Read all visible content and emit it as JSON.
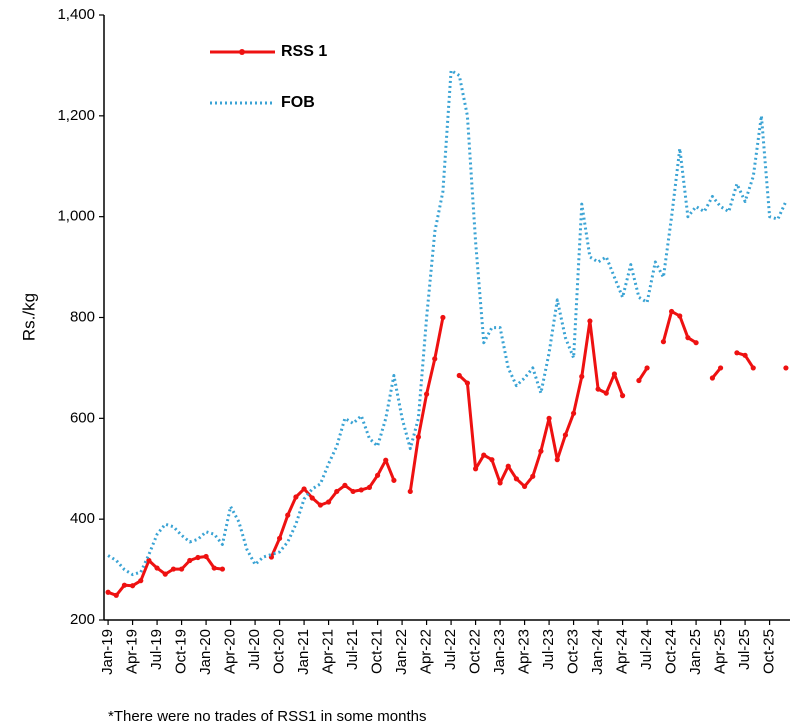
{
  "chart_data": {
    "type": "line",
    "ylabel": "Rs./kg",
    "footnote": "*There were no trades of RSS1 in some months",
    "ylim": [
      200,
      1400
    ],
    "yticks": [
      200,
      400,
      600,
      800,
      {
        "value": 1000,
        "label": "1,000"
      },
      {
        "value": 1200,
        "label": "1,200"
      },
      {
        "value": 1400,
        "label": "1,400"
      }
    ],
    "legend": "upper-left",
    "categories": [
      "Jan-19",
      null,
      null,
      "Apr-19",
      null,
      null,
      "Jul-19",
      null,
      null,
      "Oct-19",
      null,
      null,
      "Jan-20",
      null,
      null,
      "Apr-20",
      null,
      null,
      "Jul-20",
      null,
      null,
      "Oct-20",
      null,
      null,
      "Jan-21",
      null,
      null,
      "Apr-21",
      null,
      null,
      "Jul-21",
      null,
      null,
      "Oct-21",
      null,
      null,
      "Jan-22",
      null,
      null,
      "Apr-22",
      null,
      null,
      "Jul-22",
      null,
      null,
      "Oct-22",
      null,
      null,
      "Jan-23",
      null,
      null,
      "Apr-23",
      null,
      null,
      "Jul-23",
      null,
      null,
      "Oct-23",
      null,
      null,
      "Jan-24",
      null,
      null,
      "Apr-24",
      null,
      null,
      "Jul-24",
      null,
      null,
      "Oct-24",
      null,
      null,
      "Jan-25",
      null,
      null,
      "Apr-25",
      null,
      null,
      "Jul-25",
      null,
      null,
      "Oct-25",
      null,
      null
    ],
    "series": [
      {
        "name": "RSS 1",
        "color": "#ee1111",
        "style": "solid-markers",
        "values": [
          255,
          249,
          269,
          268,
          278,
          318,
          303,
          291,
          301,
          301,
          318,
          324,
          326,
          303,
          301,
          null,
          null,
          null,
          null,
          null,
          325,
          362,
          408,
          444,
          460,
          442,
          428,
          434,
          455,
          467,
          455,
          458,
          463,
          487,
          517,
          477,
          null,
          455,
          563,
          648,
          718,
          800,
          null,
          685,
          670,
          500,
          527,
          518,
          472,
          505,
          480,
          465,
          485,
          535,
          600,
          518,
          567,
          610,
          683,
          793,
          658,
          650,
          688,
          645,
          null,
          675,
          700,
          null,
          752,
          812,
          803,
          760,
          750,
          null,
          680,
          700,
          null,
          730,
          725,
          700,
          null,
          null,
          null,
          700
        ]
      },
      {
        "name": "FOB",
        "color": "#3aa3d4",
        "style": "dotted",
        "values": [
          328,
          318,
          300,
          290,
          295,
          330,
          370,
          390,
          385,
          368,
          355,
          360,
          375,
          370,
          350,
          425,
          395,
          340,
          310,
          325,
          330,
          335,
          355,
          390,
          440,
          460,
          470,
          510,
          545,
          600,
          590,
          605,
          560,
          545,
          600,
          685,
          600,
          540,
          600,
          800,
          970,
          1050,
          1290,
          1280,
          1200,
          950,
          750,
          780,
          780,
          700,
          665,
          680,
          700,
          650,
          730,
          835,
          760,
          720,
          1025,
          920,
          910,
          920,
          880,
          840,
          905,
          840,
          830,
          910,
          880,
          1000,
          1135,
          1000,
          1020,
          1010,
          1040,
          1020,
          1010,
          1065,
          1030,
          1080,
          1200,
          1000,
          995,
          1030
        ]
      }
    ]
  }
}
